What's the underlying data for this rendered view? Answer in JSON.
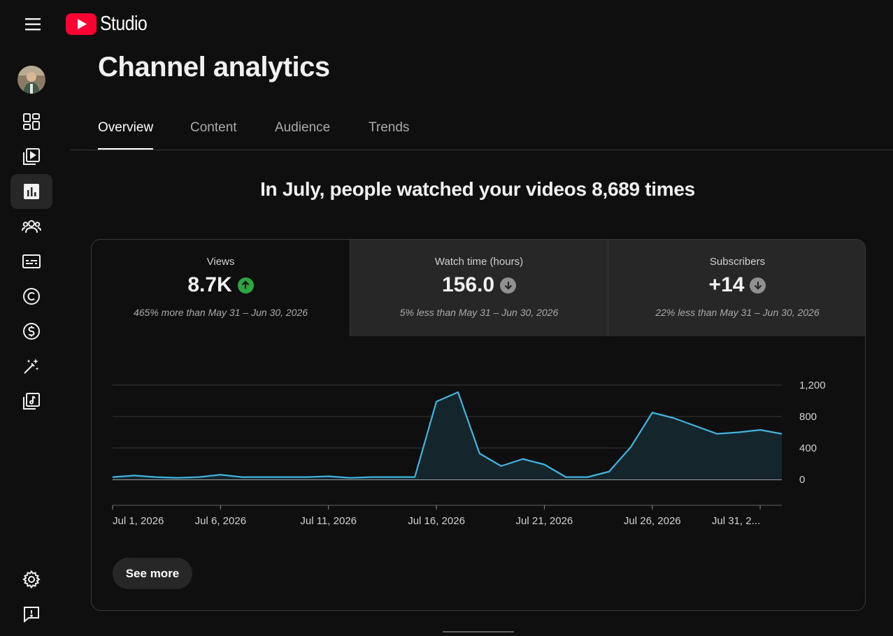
{
  "app": {
    "logo_text": "Studio"
  },
  "header": {
    "title": "Channel analytics"
  },
  "tabs": [
    {
      "label": "Overview",
      "active": true
    },
    {
      "label": "Content"
    },
    {
      "label": "Audience"
    },
    {
      "label": "Trends"
    }
  ],
  "sidebar": {
    "items": [
      {
        "icon": "dashboard-icon"
      },
      {
        "icon": "content-icon"
      },
      {
        "icon": "analytics-icon",
        "active": true
      },
      {
        "icon": "community-icon"
      },
      {
        "icon": "subtitles-icon"
      },
      {
        "icon": "copyright-icon"
      },
      {
        "icon": "earn-icon"
      },
      {
        "icon": "customization-icon"
      },
      {
        "icon": "audio-library-icon"
      }
    ],
    "bottom": [
      {
        "icon": "settings-icon"
      },
      {
        "icon": "feedback-icon"
      }
    ]
  },
  "headline": "In July, people watched your videos 8,689 times",
  "metrics": [
    {
      "label": "Views",
      "value": "8.7K",
      "trend": "up",
      "comparison": "465% more than May 31 – Jun 30, 2026"
    },
    {
      "label": "Watch time (hours)",
      "value": "156.0",
      "trend": "down",
      "comparison": "5% less than May 31 – Jun 30, 2026"
    },
    {
      "label": "Subscribers",
      "value": "+14",
      "trend": "down",
      "comparison": "22% less than May 31 – Jun 30, 2026"
    }
  ],
  "see_more_label": "See more",
  "colors": {
    "line": "#41b4e0",
    "fill": "#15252c",
    "up": "#2ba640",
    "down": "#909090",
    "accent": "#ff0033"
  },
  "chart_data": {
    "type": "area",
    "series": [
      {
        "values": [
          30,
          50,
          30,
          20,
          30,
          60,
          30,
          30,
          30,
          30,
          40,
          20,
          30,
          30,
          30,
          990,
          1110,
          330,
          170,
          260,
          190,
          30,
          30,
          100,
          410,
          850,
          780,
          680,
          580,
          600,
          630,
          580
        ]
      }
    ],
    "x_ticks": [
      "Jul 1, 2026",
      "Jul 6, 2026",
      "Jul 11, 2026",
      "Jul 16, 2026",
      "Jul 21, 2026",
      "Jul 26, 2026",
      "Jul 31, 2..."
    ],
    "x_tick_days": [
      1,
      6,
      11,
      16,
      21,
      26,
      31
    ],
    "y_ticks": [
      "1,200",
      "800",
      "400",
      "0"
    ],
    "y_tick_values": [
      1200,
      800,
      400,
      0
    ],
    "ylim": [
      0,
      1200
    ],
    "grid": true,
    "y_axis_position": "right"
  }
}
